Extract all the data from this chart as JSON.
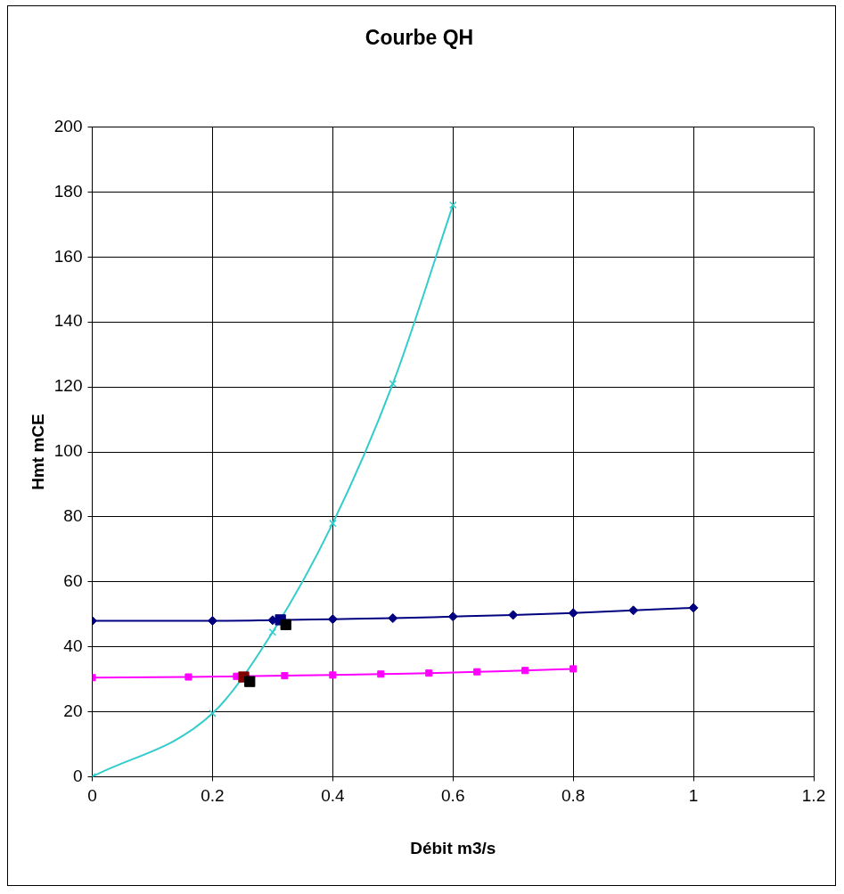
{
  "chart_data": {
    "type": "line",
    "title": "Courbe QH",
    "xlabel": "Débit m3/s",
    "ylabel": "Hmt mCE",
    "xlim": [
      0,
      1.2
    ],
    "xticks": [
      0,
      0.2,
      0.4,
      0.6,
      0.8,
      1,
      1.2
    ],
    "ylim": [
      0,
      200
    ],
    "yticks": [
      0,
      20,
      40,
      60,
      80,
      100,
      120,
      140,
      160,
      180,
      200
    ],
    "grid": true,
    "line_style": "solid",
    "series": [
      {
        "color": "#000080",
        "marker": "diamond",
        "x": [
          0,
          0.2,
          0.3,
          0.4,
          0.5,
          0.6,
          0.7,
          0.8,
          0.9,
          1
        ],
        "values": [
          48,
          48,
          48.2,
          48.5,
          48.8,
          49.3,
          49.8,
          50.4,
          51.2,
          52
        ]
      },
      {
        "color": "#ff00ff",
        "marker": "square",
        "x": [
          0,
          0.16,
          0.24,
          0.32,
          0.4,
          0.48,
          0.56,
          0.64,
          0.72,
          0.8
        ],
        "values": [
          30.5,
          30.7,
          30.9,
          31.1,
          31.3,
          31.6,
          31.9,
          32.3,
          32.7,
          33.2
        ]
      },
      {
        "color": "#33cccc",
        "marker": "cross",
        "x": [
          0,
          0.2,
          0.3,
          0.4,
          0.5,
          0.6
        ],
        "values": [
          0,
          19.5,
          44.5,
          78,
          121,
          176
        ]
      },
      {
        "type": "scatter",
        "color": "#000000",
        "marker": "square",
        "x": [
          0.322,
          0.262
        ],
        "values": [
          46.8,
          29.3
        ]
      },
      {
        "type": "scatter",
        "color": "#000080",
        "marker": "square",
        "x": [
          0.313
        ],
        "values": [
          48.3
        ]
      },
      {
        "type": "scatter",
        "color": "#800000",
        "marker": "square",
        "x": [
          0.252
        ],
        "values": [
          30.7
        ]
      }
    ]
  }
}
